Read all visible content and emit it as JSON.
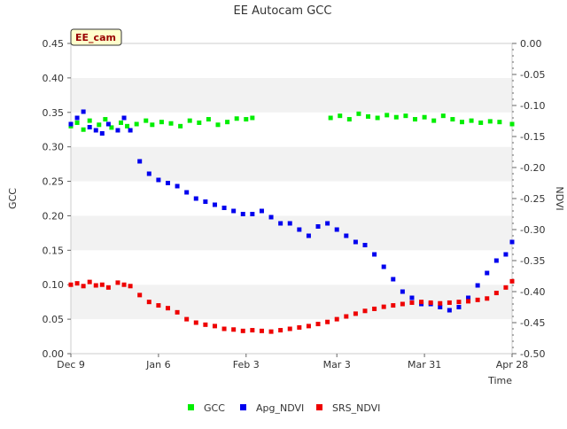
{
  "chart_data": {
    "type": "scatter",
    "title": "EE Autocam GCC",
    "site_tag": "EE_cam",
    "xlabel": "Time",
    "ylabel_left": "GCC",
    "ylabel_right": "NDVI",
    "x_range": [
      "2023-12-09",
      "2024-04-28"
    ],
    "y_left_range": [
      0.0,
      0.45
    ],
    "y_right_range": [
      -0.5,
      0.0
    ],
    "x_ticks": [
      "Dec 9",
      "Jan 6",
      "Feb 3",
      "Mar 3",
      "Mar 31",
      "Apr 28"
    ],
    "y_left_ticks": [
      "0.00",
      "0.05",
      "0.10",
      "0.15",
      "0.20",
      "0.25",
      "0.30",
      "0.35",
      "0.40",
      "0.45"
    ],
    "y_right_ticks": [
      "-0.50",
      "-0.45",
      "-0.40",
      "-0.35",
      "-0.30",
      "-0.25",
      "-0.20",
      "-0.15",
      "-0.10",
      "-0.05",
      "0.00"
    ],
    "grid": "alternating horizontal bands",
    "legend_position": "bottom",
    "series": [
      {
        "name": "GCC",
        "axis": "left",
        "color": "#00ee00",
        "x": [
          "2023-12-09",
          "2023-12-11",
          "2023-12-13",
          "2023-12-15",
          "2023-12-18",
          "2023-12-20",
          "2023-12-22",
          "2023-12-25",
          "2023-12-27",
          "2023-12-30",
          "2024-01-02",
          "2024-01-04",
          "2024-01-07",
          "2024-01-10",
          "2024-01-13",
          "2024-01-16",
          "2024-01-19",
          "2024-01-22",
          "2024-01-25",
          "2024-01-28",
          "2024-01-31",
          "2024-02-03",
          "2024-02-05",
          "2024-03-01",
          "2024-03-04",
          "2024-03-07",
          "2024-03-10",
          "2024-03-13",
          "2024-03-16",
          "2024-03-19",
          "2024-03-22",
          "2024-03-25",
          "2024-03-28",
          "2024-03-31",
          "2024-04-03",
          "2024-04-06",
          "2024-04-09",
          "2024-04-12",
          "2024-04-15",
          "2024-04-18",
          "2024-04-21",
          "2024-04-24",
          "2024-04-28"
        ],
        "values": [
          0.33,
          0.335,
          0.325,
          0.338,
          0.332,
          0.34,
          0.328,
          0.335,
          0.33,
          0.333,
          0.338,
          0.332,
          0.336,
          0.334,
          0.33,
          0.338,
          0.335,
          0.34,
          0.332,
          0.336,
          0.341,
          0.34,
          0.342,
          0.342,
          0.345,
          0.34,
          0.348,
          0.344,
          0.342,
          0.346,
          0.343,
          0.345,
          0.34,
          0.343,
          0.338,
          0.345,
          0.34,
          0.336,
          0.338,
          0.335,
          0.337,
          0.336,
          0.333
        ]
      },
      {
        "name": "Apg_NDVI",
        "axis": "right",
        "color": "#0000ee",
        "x": [
          "2023-12-09",
          "2023-12-11",
          "2023-12-13",
          "2023-12-15",
          "2023-12-17",
          "2023-12-19",
          "2023-12-21",
          "2023-12-24",
          "2023-12-26",
          "2023-12-28",
          "2023-12-31",
          "2024-01-03",
          "2024-01-06",
          "2024-01-09",
          "2024-01-12",
          "2024-01-15",
          "2024-01-18",
          "2024-01-21",
          "2024-01-24",
          "2024-01-27",
          "2024-01-30",
          "2024-02-02",
          "2024-02-05",
          "2024-02-08",
          "2024-02-11",
          "2024-02-14",
          "2024-02-17",
          "2024-02-20",
          "2024-02-23",
          "2024-02-26",
          "2024-02-29",
          "2024-03-03",
          "2024-03-06",
          "2024-03-09",
          "2024-03-12",
          "2024-03-15",
          "2024-03-18",
          "2024-03-21",
          "2024-03-24",
          "2024-03-27",
          "2024-03-30",
          "2024-04-02",
          "2024-04-05",
          "2024-04-08",
          "2024-04-11",
          "2024-04-14",
          "2024-04-17",
          "2024-04-20",
          "2024-04-23",
          "2024-04-26",
          "2024-04-28"
        ],
        "values": [
          -0.13,
          -0.12,
          -0.11,
          -0.135,
          -0.14,
          -0.145,
          -0.13,
          -0.14,
          -0.12,
          -0.14,
          -0.19,
          -0.21,
          -0.22,
          -0.225,
          -0.23,
          -0.24,
          -0.25,
          -0.255,
          -0.26,
          -0.265,
          -0.27,
          -0.275,
          -0.275,
          -0.27,
          -0.28,
          -0.29,
          -0.29,
          -0.3,
          -0.31,
          -0.295,
          -0.29,
          -0.3,
          -0.31,
          -0.32,
          -0.325,
          -0.34,
          -0.36,
          -0.38,
          -0.4,
          -0.41,
          -0.42,
          -0.42,
          -0.425,
          -0.43,
          -0.425,
          -0.41,
          -0.39,
          -0.37,
          -0.35,
          -0.34,
          -0.32
        ]
      },
      {
        "name": "SRS_NDVI",
        "axis": "left",
        "color": "#ee0000",
        "x": [
          "2023-12-09",
          "2023-12-11",
          "2023-12-13",
          "2023-12-15",
          "2023-12-17",
          "2023-12-19",
          "2023-12-21",
          "2023-12-24",
          "2023-12-26",
          "2023-12-28",
          "2023-12-31",
          "2024-01-03",
          "2024-01-06",
          "2024-01-09",
          "2024-01-12",
          "2024-01-15",
          "2024-01-18",
          "2024-01-21",
          "2024-01-24",
          "2024-01-27",
          "2024-01-30",
          "2024-02-02",
          "2024-02-05",
          "2024-02-08",
          "2024-02-11",
          "2024-02-14",
          "2024-02-17",
          "2024-02-20",
          "2024-02-23",
          "2024-02-26",
          "2024-02-29",
          "2024-03-03",
          "2024-03-06",
          "2024-03-09",
          "2024-03-12",
          "2024-03-15",
          "2024-03-18",
          "2024-03-21",
          "2024-03-24",
          "2024-03-27",
          "2024-03-30",
          "2024-04-02",
          "2024-04-05",
          "2024-04-08",
          "2024-04-11",
          "2024-04-14",
          "2024-04-17",
          "2024-04-20",
          "2024-04-23",
          "2024-04-26",
          "2024-04-28"
        ],
        "values": [
          0.1,
          0.102,
          0.098,
          0.104,
          0.099,
          0.1,
          0.096,
          0.103,
          0.1,
          0.098,
          0.085,
          0.075,
          0.07,
          0.066,
          0.06,
          0.05,
          0.045,
          0.042,
          0.04,
          0.036,
          0.035,
          0.033,
          0.034,
          0.033,
          0.032,
          0.034,
          0.036,
          0.038,
          0.04,
          0.043,
          0.046,
          0.05,
          0.054,
          0.058,
          0.062,
          0.065,
          0.068,
          0.07,
          0.072,
          0.074,
          0.075,
          0.074,
          0.073,
          0.074,
          0.075,
          0.076,
          0.078,
          0.08,
          0.088,
          0.096,
          0.105
        ]
      }
    ]
  }
}
